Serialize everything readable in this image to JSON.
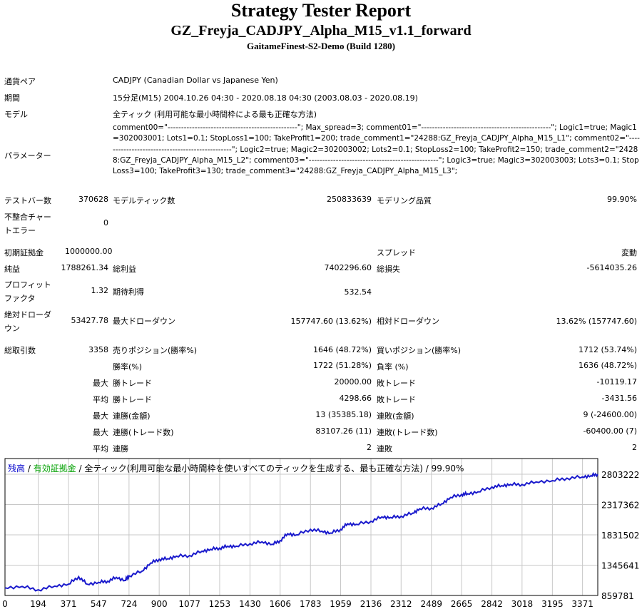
{
  "header": {
    "title": "Strategy Tester Report",
    "ea_name": "GZ_Freyja_CADJPY_Alpha_M15_v1.1_forward",
    "server": "GaitameFinest-S2-Demo (Build 1280)"
  },
  "info": {
    "symbol_label": "通貨ペア",
    "symbol_value": "CADJPY (Canadian Dollar vs Japanese Yen)",
    "period_label": "期間",
    "period_value": "15分足(M15) 2004.10.26 04:30 - 2020.08.18 04:30 (2003.08.03 - 2020.08.19)",
    "model_label": "モデル",
    "model_value": "全ティック (利用可能な最小時間枠による最も正確な方法)",
    "params_label": "パラメーター",
    "params_value": "comment00=\"------------------------------------------------\"; Max_spread=3; comment01=\"------------------------------------------------\"; Logic1=true; Magic1=302003001; Lots1=0.1; StopLoss1=100; TakeProfit1=200; trade_comment1=\"24288:GZ_Freyja_CADJPY_Alpha_M15_L1\"; comment02=\"------------------------------------------------\"; Logic2=true; Magic2=302003002; Lots2=0.1; StopLoss2=100; TakeProfit2=150; trade_comment2=\"24288:GZ_Freyja_CADJPY_Alpha_M15_L2\"; comment03=\"------------------------------------------------\"; Logic3=true; Magic3=302003003; Lots3=0.1; StopLoss3=100; TakeProfit3=130; trade_comment3=\"24288:GZ_Freyja_CADJPY_Alpha_M15_L3\";"
  },
  "stats": {
    "bars_label": "テストバー数",
    "bars_value": "370628",
    "ticks_label": "モデルティック数",
    "ticks_value": "250833639",
    "quality_label": "モデリング品質",
    "quality_value": "99.90%",
    "mismatch_label_1": "不整合チャー",
    "mismatch_label_2": "トエラー",
    "mismatch_value": "0",
    "deposit_label": "初期証拠金",
    "deposit_value": "1000000.00",
    "spread_label": "スプレッド",
    "spread_value": "変動",
    "net_label": "純益",
    "net_value": "1788261.34",
    "gross_profit_label": "総利益",
    "gross_profit_value": "7402296.60",
    "gross_loss_label": "総損失",
    "gross_loss_value": "-5614035.26",
    "pf_label_1": "プロフィット",
    "pf_label_2": "ファクタ",
    "pf_value": "1.32",
    "expected_label": "期待利得",
    "expected_value": "532.54",
    "abs_dd_label_1": "絶対ドローダ",
    "abs_dd_label_2": "ウン",
    "abs_dd_value": "53427.78",
    "max_dd_label": "最大ドローダウン",
    "max_dd_value": "157747.60 (13.62%)",
    "rel_dd_label": "相対ドローダウン",
    "rel_dd_value": "13.62% (157747.60)",
    "trades_label": "総取引数",
    "trades_value": "3358",
    "short_label": "売りポジション(勝率%)",
    "short_value": "1646 (48.72%)",
    "long_label": "買いポジション(勝率%)",
    "long_value": "1712 (53.74%)",
    "win_label": "勝率(%)",
    "win_value": "1722 (51.28%)",
    "loss_label": "負率 (%)",
    "loss_value": "1636 (48.72%)",
    "max_word": "最大",
    "avg_word": "平均",
    "max_win_label": "勝トレード",
    "max_win_value": "20000.00",
    "max_loss_label": "敗トレード",
    "max_loss_value": "-10119.17",
    "avg_win_label": "勝トレード",
    "avg_win_value": "4298.66",
    "avg_loss_label": "敗トレード",
    "avg_loss_value": "-3431.56",
    "cons_wins_amt_label": "連勝(金額)",
    "cons_wins_amt_value": "13 (35385.18)",
    "cons_loss_amt_label": "連敗(金額)",
    "cons_loss_amt_value": "9 (-24600.00)",
    "cons_wins_cnt_label": "連勝(トレード数)",
    "cons_wins_cnt_value": "83107.26 (11)",
    "cons_loss_cnt_label": "連敗(トレード数)",
    "cons_loss_cnt_value": "-60400.00 (7)",
    "avg_cons_win_label": "連勝",
    "avg_cons_win_value": "2",
    "avg_cons_loss_label": "連敗",
    "avg_cons_loss_value": "2"
  },
  "legend": {
    "balance": "残高",
    "sep1": " / ",
    "equity": "有効証拠金",
    "sep2": " / ",
    "model_text": "全ティック(利用可能な最小時間枠を使いすべてのティックを生成する、最も正確な方法) / 99.90%"
  },
  "colors": {
    "balance": "#0000cc",
    "equity": "#00a000",
    "line": "#1a1acc",
    "grid": "#c8c8c8"
  },
  "chart_data": {
    "type": "line",
    "x_ticks": [
      0,
      194,
      371,
      547,
      724,
      900,
      1077,
      1253,
      1430,
      1606,
      1783,
      1959,
      2136,
      2312,
      2489,
      2665,
      2842,
      3018,
      3195,
      3371
    ],
    "y_ticks": [
      859781,
      1345641,
      1831502,
      2317362,
      2803222
    ],
    "xlim": [
      0,
      3460
    ],
    "ylim": [
      859781,
      2803222
    ],
    "grid": true,
    "series": [
      {
        "name": "残高",
        "x": [
          0,
          100,
          194,
          290,
          371,
          430,
          480,
          547,
          600,
          650,
          700,
          724,
          800,
          850,
          900,
          950,
          1000,
          1077,
          1150,
          1200,
          1253,
          1300,
          1350,
          1430,
          1500,
          1560,
          1606,
          1650,
          1700,
          1783,
          1850,
          1900,
          1959,
          2000,
          2050,
          2136,
          2200,
          2250,
          2312,
          2380,
          2420,
          2489,
          2550,
          2600,
          2665,
          2700,
          2760,
          2842,
          2900,
          2950,
          3018,
          3100,
          3195,
          3280,
          3371,
          3420,
          3460
        ],
        "values": [
          982000,
          1005000,
          950000,
          1010000,
          1042000,
          1160000,
          1040000,
          1070000,
          1090000,
          1150000,
          1100000,
          1175000,
          1250000,
          1380000,
          1440000,
          1450000,
          1490000,
          1500000,
          1570000,
          1600000,
          1620000,
          1650000,
          1650000,
          1690000,
          1720000,
          1680000,
          1740000,
          1850000,
          1830000,
          1920000,
          1890000,
          1860000,
          1920000,
          2010000,
          2000000,
          2050000,
          2120000,
          2110000,
          2130000,
          2180000,
          2250000,
          2260000,
          2330000,
          2430000,
          2480000,
          2490000,
          2520000,
          2600000,
          2620000,
          2640000,
          2640000,
          2680000,
          2700000,
          2740000,
          2760000,
          2780000,
          2803222
        ]
      }
    ]
  }
}
